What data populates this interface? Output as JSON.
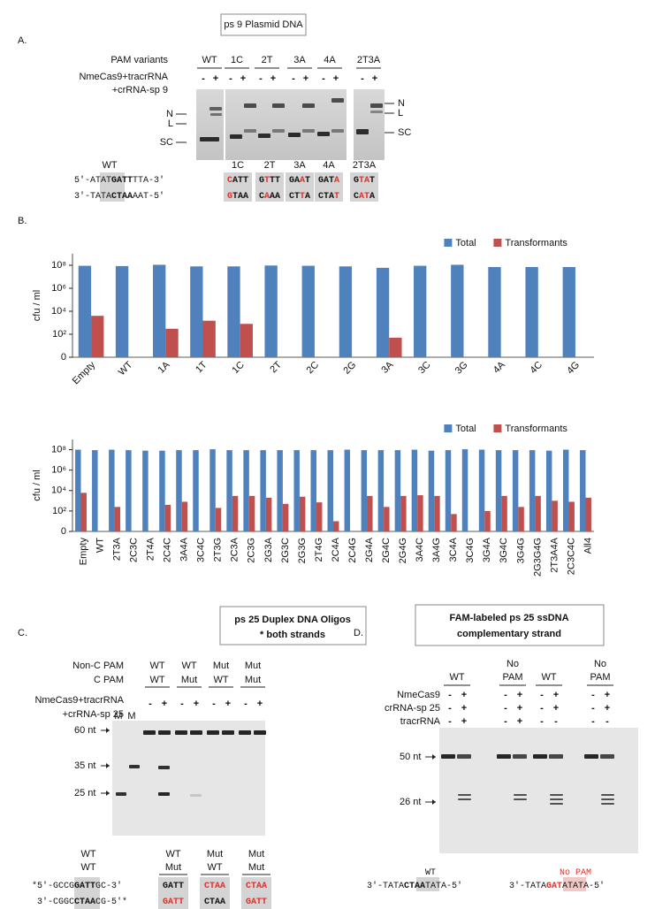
{
  "panel_a": {
    "label": "A.",
    "title": "ps 9 Plasmid DNA",
    "row_labels": [
      "PAM variants",
      "NmeCas9+tracrRNA",
      "+crRNA-sp 9"
    ],
    "lanes": [
      "WT",
      "1C",
      "2T",
      "3A",
      "4A",
      "2T3A"
    ],
    "signs": [
      "-",
      "+",
      "-",
      "+",
      "-",
      "+",
      "-",
      "+",
      "-",
      "+",
      "-",
      "+"
    ],
    "band_labels_left": [
      "N",
      "L",
      "SC"
    ],
    "band_labels_right": [
      "N",
      "L",
      "SC"
    ],
    "wt_label": "WT",
    "wt_top": [
      {
        "t": "5′-ATAT"
      },
      {
        "t": "GATT",
        "bold": true
      },
      {
        "t": "TTA-3′"
      }
    ],
    "wt_bottom": [
      {
        "t": "3′-TATA"
      },
      {
        "t": "CTAA",
        "bold": true
      },
      {
        "t": "AAT-5′"
      }
    ],
    "variants": [
      {
        "name": "1C",
        "top": [
          {
            "t": "C",
            "color": "#e0302a"
          },
          {
            "t": "ATT"
          }
        ],
        "bottom": [
          {
            "t": "G",
            "color": "#e0302a"
          },
          {
            "t": "TAA"
          }
        ]
      },
      {
        "name": "2T",
        "top": [
          {
            "t": "G"
          },
          {
            "t": "T",
            "color": "#e0302a"
          },
          {
            "t": "TT"
          }
        ],
        "bottom": [
          {
            "t": "C"
          },
          {
            "t": "A",
            "color": "#e0302a"
          },
          {
            "t": "AA"
          }
        ]
      },
      {
        "name": "3A",
        "top": [
          {
            "t": "GA"
          },
          {
            "t": "A",
            "color": "#e0302a"
          },
          {
            "t": "T"
          }
        ],
        "bottom": [
          {
            "t": "CT"
          },
          {
            "t": "T",
            "color": "#e0302a"
          },
          {
            "t": "A"
          }
        ]
      },
      {
        "name": "4A",
        "top": [
          {
            "t": "GAT"
          },
          {
            "t": "A",
            "color": "#e0302a"
          }
        ],
        "bottom": [
          {
            "t": "CTA"
          },
          {
            "t": "T",
            "color": "#e0302a"
          }
        ]
      },
      {
        "name": "2T3A",
        "top": [
          {
            "t": "G"
          },
          {
            "t": "TA",
            "color": "#e0302a"
          },
          {
            "t": "T"
          }
        ],
        "bottom": [
          {
            "t": "C"
          },
          {
            "t": "AT",
            "color": "#e0302a"
          },
          {
            "t": "A"
          }
        ]
      }
    ]
  },
  "panel_b": {
    "label": "B."
  },
  "chart_data": [
    {
      "type": "bar",
      "y_label": "cfu / ml",
      "log": true,
      "legend": "top-right",
      "ylim": [
        1,
        1000000000
      ],
      "yticks": [
        {
          "value": 1,
          "label": "0"
        },
        {
          "value": 100,
          "label": "10²"
        },
        {
          "value": 10000,
          "label": "10⁴"
        },
        {
          "value": 1000000,
          "label": "10⁶"
        },
        {
          "value": 100000000,
          "label": "10⁸"
        }
      ],
      "categories": [
        "Empty",
        "WT",
        "1A",
        "1T",
        "1C",
        "2T",
        "2C",
        "2G",
        "3A",
        "3C",
        "3G",
        "4A",
        "4C",
        "4G"
      ],
      "series": [
        {
          "name": "Total",
          "color": "#4f81bd",
          "values": [
            90000000,
            85000000,
            110000000,
            80000000,
            80000000,
            95000000,
            90000000,
            80000000,
            60000000,
            90000000,
            110000000,
            70000000,
            70000000,
            70000000
          ]
        },
        {
          "name": "Transformants",
          "color": "#c0504d",
          "values": [
            4000,
            null,
            300,
            1500,
            800,
            null,
            null,
            null,
            50,
            null,
            null,
            null,
            null,
            null
          ]
        }
      ]
    },
    {
      "type": "bar",
      "y_label": "cfu / ml",
      "log": true,
      "legend": "top-right",
      "ylim": [
        1,
        1000000000
      ],
      "yticks": [
        {
          "value": 1,
          "label": "0"
        },
        {
          "value": 100,
          "label": "10²"
        },
        {
          "value": 10000,
          "label": "10⁴"
        },
        {
          "value": 1000000,
          "label": "10⁶"
        },
        {
          "value": 100000000,
          "label": "10⁸"
        }
      ],
      "categories": [
        "Empty",
        "WT",
        "2T3A",
        "2C3C",
        "2T4A",
        "2C4C",
        "3A4A",
        "3C4C",
        "2T3G",
        "2C3A",
        "2C3G",
        "2G3A",
        "2G3C",
        "2G3G",
        "2T4G",
        "2C4A",
        "2C4G",
        "2G4A",
        "2G4C",
        "2G4G",
        "3A4C",
        "3A4G",
        "3C4A",
        "3C4G",
        "3G4A",
        "3G4C",
        "3G4G",
        "2G3G4G",
        "2T3A4A",
        "2C3C4C",
        "All4"
      ],
      "series": [
        {
          "name": "Total",
          "color": "#4f81bd",
          "values": [
            100000000,
            90000000,
            100000000,
            90000000,
            80000000,
            80000000,
            90000000,
            90000000,
            110000000,
            90000000,
            90000000,
            90000000,
            90000000,
            90000000,
            90000000,
            90000000,
            100000000,
            90000000,
            90000000,
            90000000,
            100000000,
            80000000,
            90000000,
            110000000,
            100000000,
            90000000,
            90000000,
            90000000,
            80000000,
            100000000,
            90000000
          ]
        },
        {
          "name": "Transformants",
          "color": "#c0504d",
          "values": [
            6000,
            null,
            250,
            null,
            null,
            400,
            800,
            null,
            200,
            3000,
            3000,
            2000,
            500,
            2500,
            700,
            10,
            null,
            3000,
            250,
            3000,
            3500,
            3000,
            50,
            null,
            100,
            3000,
            250,
            3000,
            1000,
            800,
            2000
          ]
        }
      ]
    }
  ],
  "panel_c": {
    "label": "C.",
    "title": [
      "ps 25 Duplex DNA Oligos",
      "* both strands"
    ],
    "row_labels": [
      "Non-C PAM",
      "C PAM",
      "NmeCas9+tracrRNA",
      "+crRNA-sp 25"
    ],
    "non_c_pam": [
      {
        "t": "WT"
      },
      {
        "t": "WT"
      },
      {
        "t": "Mut",
        "color": "#e0302a"
      },
      {
        "t": "Mut",
        "color": "#e0302a"
      }
    ],
    "c_pam": [
      {
        "t": "WT"
      },
      {
        "t": "Mut",
        "color": "#e0302a"
      },
      {
        "t": "WT"
      },
      {
        "t": "Mut",
        "color": "#e0302a"
      }
    ],
    "signs": [
      "-",
      "+",
      "-",
      "+",
      "-",
      "+",
      "-",
      "+"
    ],
    "markers": [
      "M",
      "M"
    ],
    "size_labels": [
      "60 nt",
      "35 nt",
      "25 nt"
    ],
    "wt_header": [
      "WT",
      "WT"
    ],
    "wt_top": [
      {
        "t": "*5′-GCCG"
      },
      {
        "t": "GATT",
        "bold": true
      },
      {
        "t": "GC-3′"
      }
    ],
    "wt_bottom": [
      {
        "t": "3′-CGGC"
      },
      {
        "t": "CTAA",
        "bold": true
      },
      {
        "t": "CG-5′*"
      }
    ],
    "boxes": [
      {
        "header": [
          {
            "t": "WT"
          },
          {
            "t": "Mut",
            "color": "#e0302a"
          }
        ],
        "top": [
          {
            "t": "GATT"
          }
        ],
        "bottom": [
          {
            "t": "GATT",
            "color": "#e0302a"
          }
        ]
      },
      {
        "header": [
          {
            "t": "Mut",
            "color": "#e0302a"
          },
          {
            "t": "WT"
          }
        ],
        "top": [
          {
            "t": "CTAA",
            "color": "#e0302a"
          }
        ],
        "bottom": [
          {
            "t": "CTAA"
          }
        ]
      },
      {
        "header": [
          {
            "t": "Mut",
            "color": "#e0302a"
          },
          {
            "t": "Mut",
            "color": "#e0302a"
          }
        ],
        "top": [
          {
            "t": "CTAA",
            "color": "#e0302a"
          }
        ],
        "bottom": [
          {
            "t": "GATT",
            "color": "#e0302a"
          }
        ]
      }
    ]
  },
  "panel_d": {
    "label": "D.",
    "title": [
      "FAM-labeled ps 25 ssDNA",
      "complementary strand"
    ],
    "headers": [
      {
        "lines": [
          "WT"
        ]
      },
      {
        "lines": [
          "No",
          "PAM"
        ],
        "color": "#e0302a"
      },
      {
        "lines": [
          "WT"
        ]
      },
      {
        "lines": [
          "No",
          "PAM"
        ],
        "color": "#e0302a"
      }
    ],
    "row_labels": [
      "NmeCas9",
      "crRNA-sp 25",
      "tracrRNA"
    ],
    "signs": [
      [
        "-",
        "+",
        "-",
        "+",
        "-",
        "+",
        "-",
        "+"
      ],
      [
        "-",
        "+",
        "-",
        "+",
        "-",
        "+",
        "-",
        "+"
      ],
      [
        "-",
        "+",
        "-",
        "+",
        "-",
        "-",
        "-",
        "-"
      ]
    ],
    "size_labels": [
      "50 nt",
      "26 nt"
    ],
    "seqs": [
      {
        "name": [
          {
            "t": "WT"
          }
        ],
        "seq": [
          {
            "t": "3′-TATA"
          },
          {
            "t": "CTAA",
            "bold": true
          },
          {
            "t": "TATA-5′"
          }
        ]
      },
      {
        "name": [
          {
            "t": "No PAM",
            "color": "#e0302a"
          }
        ],
        "seq": [
          {
            "t": "3′-TATA"
          },
          {
            "t": "GAT",
            "bold": true,
            "color": "#e0302a"
          },
          {
            "t": "ATATA-5′"
          }
        ]
      }
    ]
  }
}
